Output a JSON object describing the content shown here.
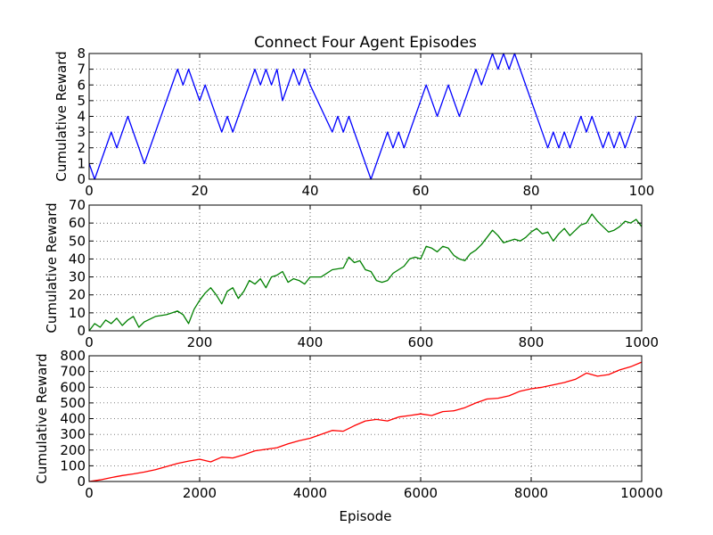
{
  "figure": {
    "title": "Connect Four Agent Episodes",
    "xlabel": "Episode"
  },
  "chart_data": [
    {
      "type": "line",
      "title": "Connect Four Agent Episodes",
      "xlabel": "",
      "ylabel": "Cumulative Reward",
      "xlim": [
        0,
        100
      ],
      "ylim": [
        0,
        8
      ],
      "xticks": [
        0,
        20,
        40,
        60,
        80,
        100
      ],
      "yticks": [
        0,
        1,
        2,
        3,
        4,
        5,
        6,
        7,
        8
      ],
      "grid": true,
      "color": "#0000ff",
      "series": [
        {
          "x": [
            0,
            1,
            4,
            5,
            7,
            10,
            16,
            17,
            18,
            20,
            21,
            24,
            25,
            26,
            30,
            31,
            32,
            33,
            34,
            35,
            37,
            38,
            39,
            40,
            44,
            45,
            46,
            47,
            51,
            54,
            55,
            56,
            57,
            61,
            63,
            65,
            67,
            70,
            71,
            73,
            74,
            75,
            76,
            77,
            83,
            84,
            85,
            86,
            87,
            89,
            90,
            91,
            92,
            93,
            94,
            95,
            96,
            97,
            99
          ],
          "y": [
            1,
            0,
            3,
            2,
            4,
            1,
            7,
            6,
            7,
            5,
            6,
            3,
            4,
            3,
            7,
            6,
            7,
            6,
            7,
            5,
            7,
            6,
            7,
            6,
            3,
            4,
            3,
            4,
            0,
            3,
            2,
            3,
            2,
            6,
            4,
            6,
            4,
            7,
            6,
            8,
            7,
            8,
            7,
            8,
            2,
            3,
            2,
            3,
            2,
            4,
            3,
            4,
            3,
            2,
            3,
            2,
            3,
            2,
            4
          ]
        }
      ]
    },
    {
      "type": "line",
      "xlabel": "",
      "ylabel": "Cumulative Reward",
      "xlim": [
        0,
        1000
      ],
      "ylim": [
        0,
        70
      ],
      "xticks": [
        0,
        200,
        400,
        600,
        800,
        1000
      ],
      "yticks": [
        0,
        10,
        20,
        30,
        40,
        50,
        60,
        70
      ],
      "grid": true,
      "color": "#008000",
      "series": [
        {
          "x": [
            0,
            10,
            20,
            30,
            40,
            50,
            60,
            70,
            80,
            90,
            100,
            120,
            140,
            150,
            160,
            170,
            180,
            190,
            200,
            210,
            220,
            230,
            240,
            250,
            260,
            270,
            280,
            290,
            300,
            310,
            320,
            330,
            340,
            350,
            360,
            370,
            380,
            390,
            400,
            420,
            440,
            460,
            470,
            480,
            490,
            500,
            510,
            520,
            530,
            540,
            550,
            560,
            570,
            580,
            590,
            600,
            610,
            620,
            630,
            640,
            650,
            660,
            670,
            680,
            690,
            700,
            710,
            720,
            730,
            740,
            750,
            760,
            770,
            780,
            790,
            800,
            810,
            820,
            830,
            840,
            850,
            860,
            870,
            880,
            890,
            900,
            910,
            920,
            930,
            940,
            950,
            960,
            970,
            980,
            990,
            1000
          ],
          "y": [
            0,
            4,
            2,
            6,
            4,
            7,
            3,
            6,
            8,
            2,
            5,
            8,
            9,
            10,
            11,
            9,
            4,
            12,
            17,
            21,
            24,
            20,
            15,
            22,
            24,
            18,
            22,
            28,
            26,
            29,
            24,
            30,
            31,
            33,
            27,
            29,
            28,
            26,
            30,
            30,
            34,
            35,
            41,
            38,
            39,
            34,
            33,
            28,
            27,
            28,
            32,
            34,
            36,
            40,
            41,
            40,
            47,
            46,
            44,
            47,
            46,
            42,
            40,
            39,
            43,
            45,
            48,
            52,
            56,
            53,
            49,
            50,
            51,
            50,
            52,
            55,
            57,
            54,
            55,
            50,
            54,
            57,
            53,
            56,
            59,
            60,
            65,
            61,
            58,
            55,
            56,
            58,
            61,
            60,
            62,
            58
          ]
        }
      ]
    },
    {
      "type": "line",
      "xlabel": "Episode",
      "ylabel": "Cumulative Reward",
      "xlim": [
        0,
        10000
      ],
      "ylim": [
        0,
        800
      ],
      "xticks": [
        0,
        2000,
        4000,
        6000,
        8000,
        10000
      ],
      "yticks": [
        0,
        100,
        200,
        300,
        400,
        500,
        600,
        700,
        800
      ],
      "grid": true,
      "color": "#ff0000",
      "series": [
        {
          "x": [
            0,
            200,
            400,
            600,
            800,
            1000,
            1200,
            1400,
            1600,
            1800,
            2000,
            2200,
            2400,
            2600,
            2800,
            3000,
            3200,
            3400,
            3600,
            3800,
            4000,
            4200,
            4400,
            4600,
            4800,
            5000,
            5200,
            5400,
            5600,
            5800,
            6000,
            6200,
            6400,
            6600,
            6800,
            7000,
            7200,
            7400,
            7600,
            7800,
            8000,
            8200,
            8400,
            8600,
            8800,
            9000,
            9200,
            9400,
            9600,
            9800,
            10000
          ],
          "y": [
            0,
            10,
            25,
            38,
            48,
            60,
            75,
            95,
            115,
            130,
            142,
            125,
            155,
            150,
            170,
            195,
            205,
            215,
            240,
            260,
            275,
            300,
            325,
            320,
            355,
            385,
            395,
            385,
            410,
            420,
            430,
            420,
            445,
            450,
            470,
            500,
            525,
            530,
            545,
            575,
            590,
            600,
            615,
            630,
            650,
            690,
            670,
            680,
            710,
            730,
            760
          ]
        }
      ]
    }
  ]
}
